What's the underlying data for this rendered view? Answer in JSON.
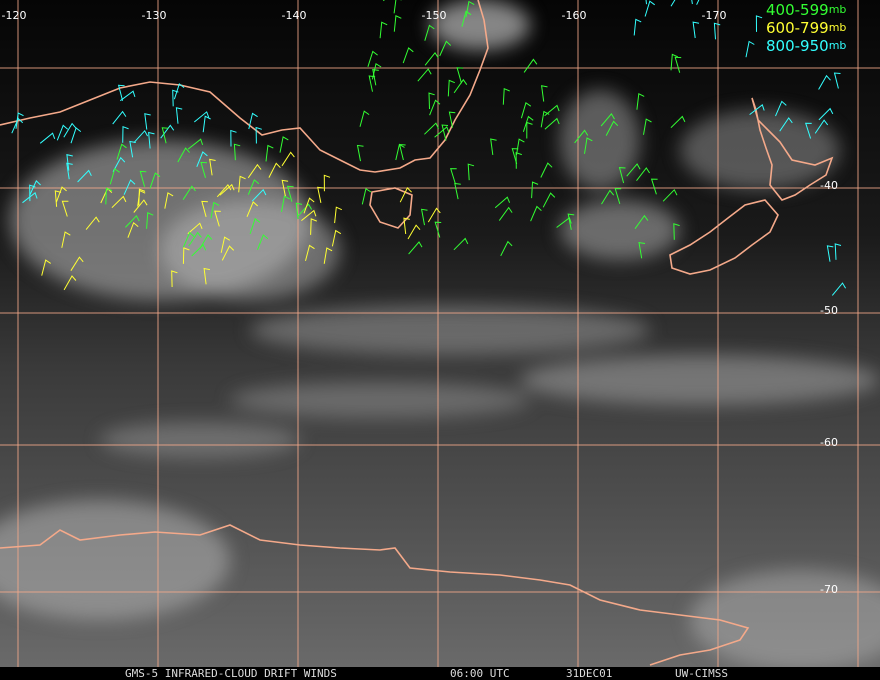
{
  "map": {
    "longitude_labels": [
      "-120",
      "-130",
      "-140",
      "-150",
      "-160",
      "-170"
    ],
    "latitude_labels": [
      "-40",
      "-50",
      "-60",
      "-70"
    ],
    "legend": [
      {
        "range": "400-599",
        "unit": "mb",
        "color": "#33ff33"
      },
      {
        "range": "600-799",
        "unit": "mb",
        "color": "#ffff33"
      },
      {
        "range": "800-950",
        "unit": "mb",
        "color": "#33ffff"
      }
    ],
    "footer": {
      "product": "GMS-5 INFRARED-CLOUD DRIFT WINDS",
      "time": "06:00 UTC",
      "date": "31DEC01",
      "source": "UW-CIMSS"
    }
  }
}
